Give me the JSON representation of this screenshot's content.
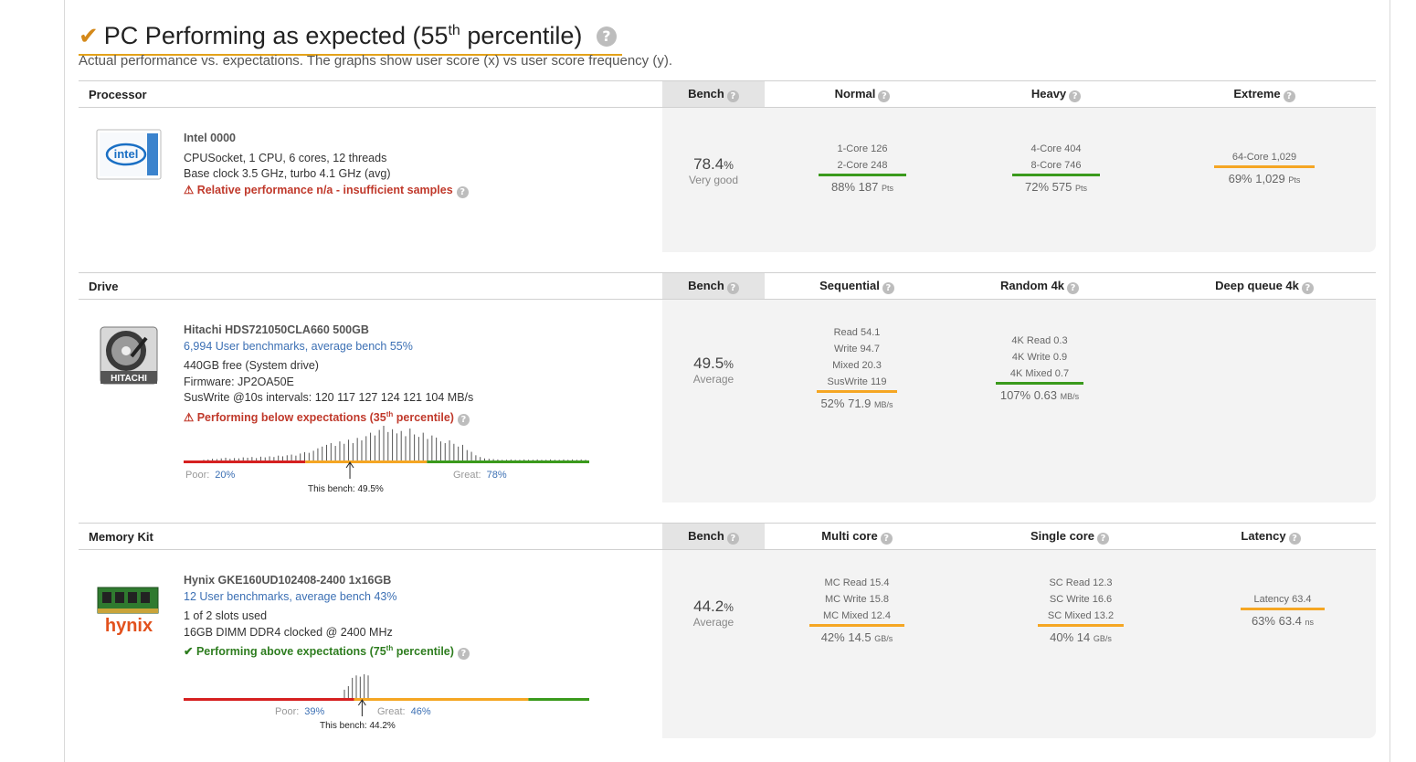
{
  "header": {
    "title_main": "PC Performing as expected (55",
    "title_sup": "th",
    "title_end": " percentile)",
    "subtitle": "Actual performance vs. expectations. The graphs show user score (x) vs user score frequency (y)."
  },
  "colors": {
    "red": "#d62020",
    "orange": "#f5a623",
    "green": "#3a9a1c",
    "link": "#3c70b4",
    "accent": "#e3a21a"
  },
  "processor": {
    "title": "Processor",
    "bench_label": "Bench",
    "columns": [
      "Normal",
      "Heavy",
      "Extreme"
    ],
    "icon": "intel-logo-icon",
    "icon_text": "intel",
    "name": "Intel 0000",
    "line1": "CPUSocket, 1 CPU, 6 cores, 12 threads",
    "line2": "Base clock 3.5 GHz, turbo 4.1 GHz (avg)",
    "warning": "Relative performance n/a - insufficient samples",
    "bench_value": "78.4",
    "bench_unit": "%",
    "bench_desc": "Very good",
    "metrics": [
      {
        "lines": [
          "1-Core 126",
          "2-Core 248"
        ],
        "color": "green",
        "score": "88% 187",
        "unit": "Pts"
      },
      {
        "lines": [
          "4-Core 404",
          "8-Core 746"
        ],
        "color": "green",
        "score": "72% 575",
        "unit": "Pts"
      },
      {
        "lines": [
          "64-Core 1,029"
        ],
        "color": "orange",
        "score": "69% 1,029",
        "unit": "Pts"
      }
    ]
  },
  "drive": {
    "title": "Drive",
    "bench_label": "Bench",
    "columns": [
      "Sequential",
      "Random 4k",
      "Deep queue 4k"
    ],
    "icon": "hard-drive-icon",
    "icon_text": "HITACHI",
    "name": "Hitachi HDS721050CLA660 500GB",
    "bench_link": "6,994 User benchmarks, average bench 55%",
    "line1": "440GB free (System drive)",
    "line2": "Firmware: JP2OA50E",
    "line3": "SusWrite @10s intervals: 120 117 127 124 121 104 MB/s",
    "warning_main": "Performing below expectations (35",
    "warning_sup": "th",
    "warning_end": " percentile)",
    "bench_value": "49.5",
    "bench_unit": "%",
    "bench_desc": "Average",
    "metrics": [
      {
        "lines": [
          "Read 54.1",
          "Write 94.7",
          "Mixed 20.3",
          "SusWrite 119"
        ],
        "color": "orange",
        "score": "52% 71.9",
        "unit": "MB/s"
      },
      {
        "lines": [
          "4K Read 0.3",
          "4K Write 0.9",
          "4K Mixed 0.7"
        ],
        "color": "green",
        "score": "107% 0.63",
        "unit": "MB/s"
      }
    ],
    "histogram": {
      "poor_label": "Poor:",
      "poor_value": "20%",
      "great_label": "Great:",
      "great_value": "78%",
      "this_bench": "This bench: 49.5%",
      "bench_fraction": 0.41,
      "zones": [
        0.3,
        0.6
      ],
      "bars": [
        0.02,
        0.03,
        0.05,
        0.04,
        0.06,
        0.08,
        0.05,
        0.07,
        0.06,
        0.09,
        0.08,
        0.1,
        0.07,
        0.11,
        0.09,
        0.12,
        0.1,
        0.14,
        0.12,
        0.15,
        0.17,
        0.14,
        0.2,
        0.24,
        0.22,
        0.28,
        0.35,
        0.4,
        0.45,
        0.5,
        0.42,
        0.55,
        0.48,
        0.6,
        0.5,
        0.65,
        0.58,
        0.7,
        0.8,
        0.72,
        0.88,
        1.0,
        0.82,
        0.9,
        0.78,
        0.85,
        0.7,
        0.92,
        0.75,
        0.68,
        0.8,
        0.62,
        0.72,
        0.66,
        0.55,
        0.5,
        0.58,
        0.48,
        0.4,
        0.45,
        0.3,
        0.25,
        0.15,
        0.1,
        0.06,
        0.05,
        0.04,
        0.03,
        0.02,
        0.02,
        0.03,
        0.02,
        0.02,
        0.03,
        0.02,
        0.02,
        0.03,
        0.02,
        0.02,
        0.03,
        0.02,
        0.02,
        0.03,
        0.02,
        0.03,
        0.02,
        0.03,
        0.02
      ]
    }
  },
  "memory": {
    "title": "Memory Kit",
    "bench_label": "Bench",
    "columns": [
      "Multi core",
      "Single core",
      "Latency"
    ],
    "icon": "memory-module-icon",
    "icon_text": "hynix",
    "name": "Hynix GKE160UD102408-2400 1x16GB",
    "bench_link": "12 User benchmarks, average bench 43%",
    "line1": "1 of 2 slots used",
    "line2": "16GB DIMM DDR4 clocked @ 2400 MHz",
    "ok_main": "Performing above expectations (75",
    "ok_sup": "th",
    "ok_end": " percentile)",
    "bench_value": "44.2",
    "bench_unit": "%",
    "bench_desc": "Average",
    "metrics": [
      {
        "lines": [
          "MC Read 15.4",
          "MC Write 15.8",
          "MC Mixed 12.4"
        ],
        "color": "orange",
        "score": "42% 14.5",
        "unit": "GB/s"
      },
      {
        "lines": [
          "SC Read 12.3",
          "SC Write 16.6",
          "SC Mixed 13.2"
        ],
        "color": "orange",
        "score": "40% 14",
        "unit": "GB/s"
      },
      {
        "lines": [
          "Latency 63.4"
        ],
        "color": "orange",
        "score": "63% 63.4",
        "unit": "ns"
      }
    ],
    "histogram": {
      "poor_label": "Poor:",
      "poor_value": "39%",
      "great_label": "Great:",
      "great_value": "46%",
      "this_bench": "This bench: 44.2%",
      "bench_fraction": 0.44,
      "zones": [
        0.42,
        0.85
      ],
      "bars": [
        0.35,
        0.5,
        0.85,
        0.95,
        0.9,
        1.0,
        0.95
      ]
    }
  }
}
